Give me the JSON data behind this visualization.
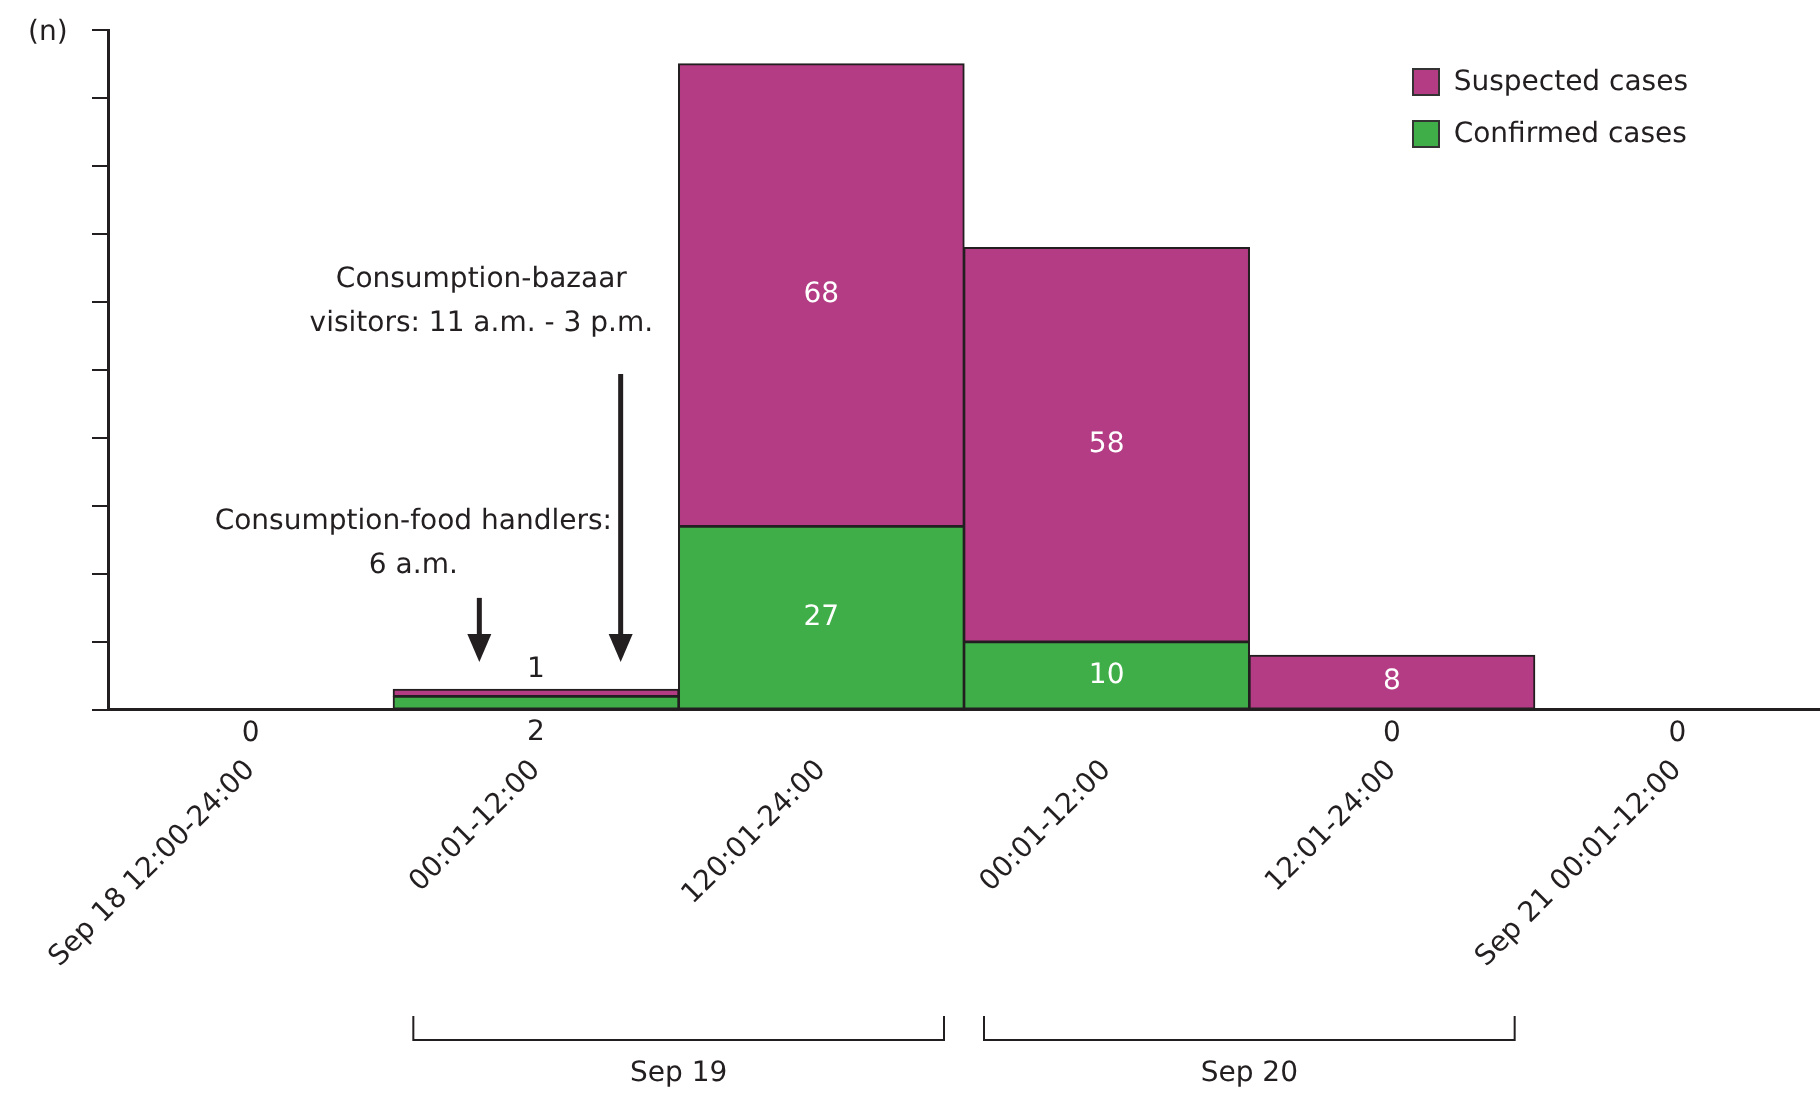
{
  "chart_data": {
    "type": "bar",
    "stacked": true,
    "ylabel": "(n)",
    "categories": [
      "Sep 18 12:00-24:00",
      "00:01-12:00",
      "120:01-24:00",
      "00:01-12:00",
      "12:01-24:00",
      "Sep 21 00:01-12:00"
    ],
    "series": [
      {
        "name": "Confirmed cases",
        "color": "#3fae49",
        "values": [
          0,
          2,
          27,
          10,
          0,
          0
        ],
        "value_labels": [
          "0",
          "2",
          "27",
          "10",
          "0",
          "0"
        ]
      },
      {
        "name": "Suspected cases",
        "color": "#b33c84",
        "values": [
          0,
          1,
          68,
          58,
          8,
          0
        ],
        "value_labels": [
          null,
          "1",
          "68",
          "58",
          "8",
          null
        ]
      }
    ],
    "ylim": [
      0,
      100
    ],
    "yticks": [
      {
        "value": 0,
        "label": null
      },
      {
        "value": 10,
        "label": null
      },
      {
        "value": 20,
        "label": null
      },
      {
        "value": 30,
        "label": null
      },
      {
        "value": 40,
        "label": null
      },
      {
        "value": 50,
        "label": null
      },
      {
        "value": 60,
        "label": null
      },
      {
        "value": 70,
        "label": null
      },
      {
        "value": 80,
        "label": null
      },
      {
        "value": 90,
        "label": null
      },
      {
        "value": 100,
        "label": null
      }
    ],
    "tick_labels": "x",
    "grid": false,
    "legend": "top right",
    "annotations": [
      "Consumption-food handlers:\n6 a.m.",
      "Consumption-bazaar\nvisitors: 11 a.m. - 3 p.m.",
      "Sep 19",
      "Sep 20"
    ]
  }
}
